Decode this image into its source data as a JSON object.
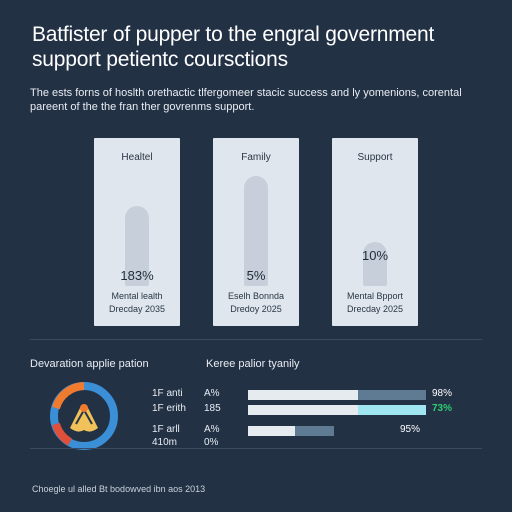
{
  "header": {
    "title": "Batfister of pupper to the engral government support petientc coursctions",
    "description": "The ests forns of hoslth orethactic tlfergomeer stacic success and ly yomenions, corental pareent of the the fran ther govrenms support."
  },
  "cards": [
    {
      "label": "Healtel",
      "value": "183%",
      "sub1": "Mental lealth",
      "sub2": "Drecday 2035",
      "level": 0.52
    },
    {
      "label": "Family",
      "value": "5%",
      "sub1": "Eselh Bonnda",
      "sub2": "Dredoy 2025",
      "level": 0.62
    },
    {
      "label": "Support",
      "value": "10%",
      "sub1": "Mental Bpport",
      "sub2": "Drecday 2025",
      "level": 0.2
    }
  ],
  "left_section": {
    "title": "Devaration applie pation"
  },
  "right_section": {
    "title": "Keree palior tyanily"
  },
  "rows": [
    {
      "a": "1F anti",
      "b": "A%",
      "pct": "98%",
      "level": 0.98,
      "tail_color": "#5f7a93"
    },
    {
      "a": "1F erith",
      "b": "185",
      "pct": "73%",
      "level": 0.73,
      "tail_color": "#9fe6f0"
    },
    {
      "a": "1F arll",
      "b": "A%",
      "pct": "95%",
      "level": 0.95,
      "tail_color": "#5f7a93"
    },
    {
      "a": "410m",
      "b": "0%",
      "pct": "",
      "level": 0,
      "tail_color": "#5f7a93"
    }
  ],
  "highlight_pct": "73%",
  "highlight_color": "#2ecc71",
  "donut_colors": [
    "#f07b2f",
    "#3a8fd6",
    "#f2c25a",
    "#e04f3a"
  ],
  "footer": "Choegle ul alled Bt bodowved ibn aos 2013"
}
